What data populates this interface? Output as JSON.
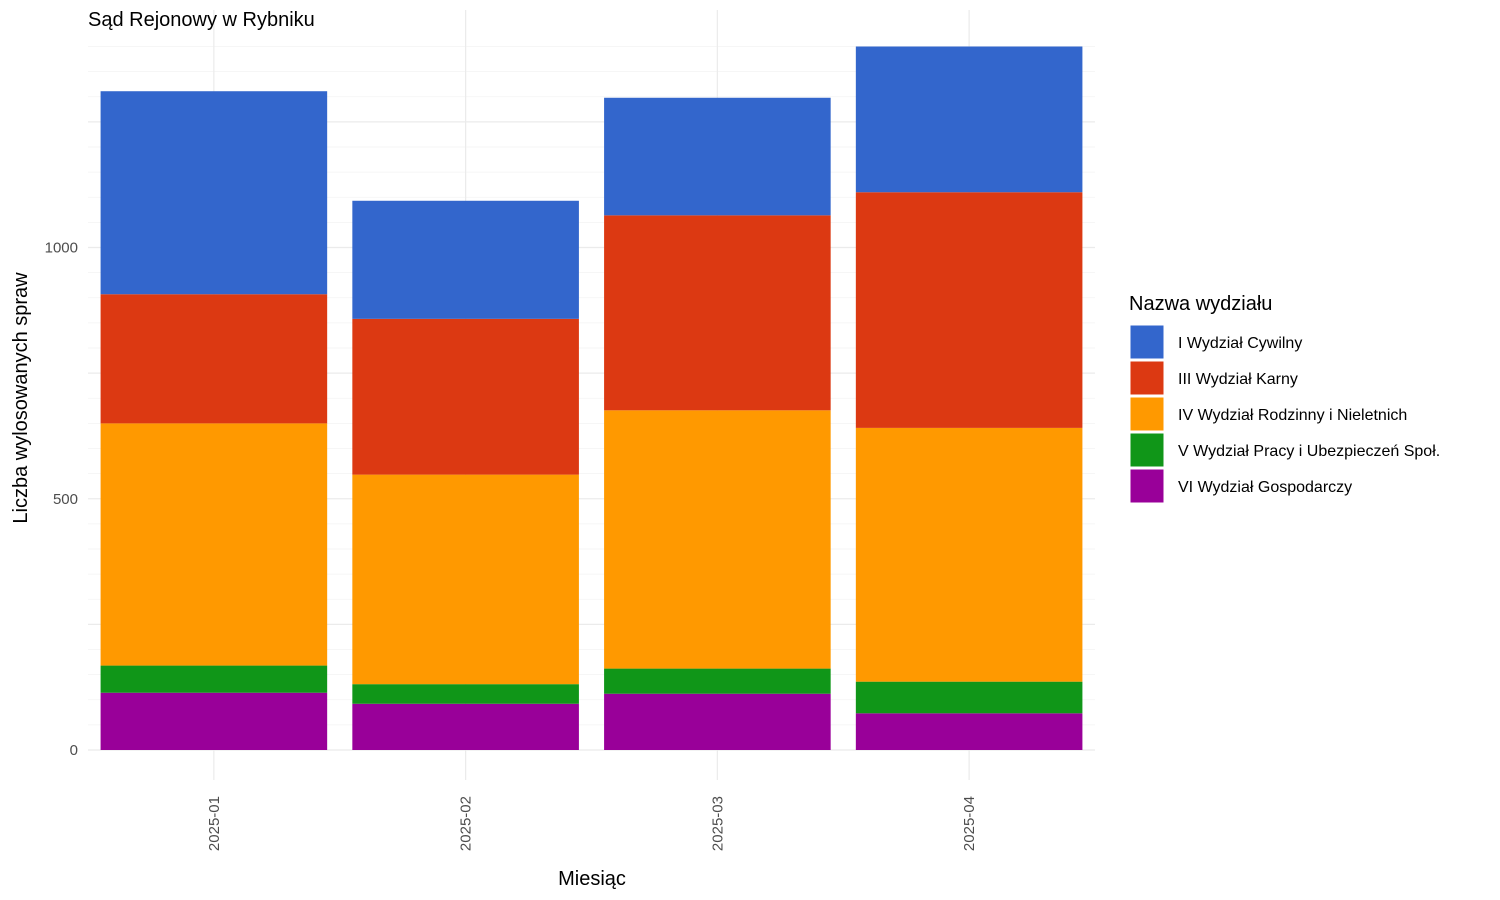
{
  "chart_data": {
    "type": "bar",
    "stacked": true,
    "title": "Sąd Rejonowy w Rybniku",
    "xlabel": "Miesiąc",
    "ylabel": "Liczba wylosowanych spraw",
    "ylim": [
      0,
      1400
    ],
    "yticks": [
      0,
      500,
      1000
    ],
    "grid": true,
    "legend_position": "right",
    "legend_title": "Nazwa wydziału",
    "categories": [
      "2025-01",
      "2025-02",
      "2025-03",
      "2025-04"
    ],
    "series": [
      {
        "name": "VI Wydział Gospodarczy",
        "color": "#990099",
        "values": [
          114,
          92,
          112,
          73
        ]
      },
      {
        "name": "V Wydział Pracy i Ubezpieczeń Społ.",
        "color": "#109618",
        "values": [
          54,
          39,
          50,
          63
        ]
      },
      {
        "name": "IV Wydział Rodzinny i Nieletnich",
        "color": "#ff9900",
        "values": [
          482,
          417,
          514,
          505
        ]
      },
      {
        "name": "III Wydział Karny",
        "color": "#dc3912",
        "values": [
          257,
          310,
          388,
          469
        ]
      },
      {
        "name": "I Wydział Cywilny",
        "color": "#3366cc",
        "values": [
          404,
          235,
          234,
          290
        ]
      }
    ],
    "legend_order": [
      "I Wydział Cywilny",
      "III Wydział Karny",
      "IV Wydział Rodzinny i Nieletnich",
      "V Wydział Pracy i Ubezpieczeń Społ.",
      "VI Wydział Gospodarczy"
    ]
  }
}
